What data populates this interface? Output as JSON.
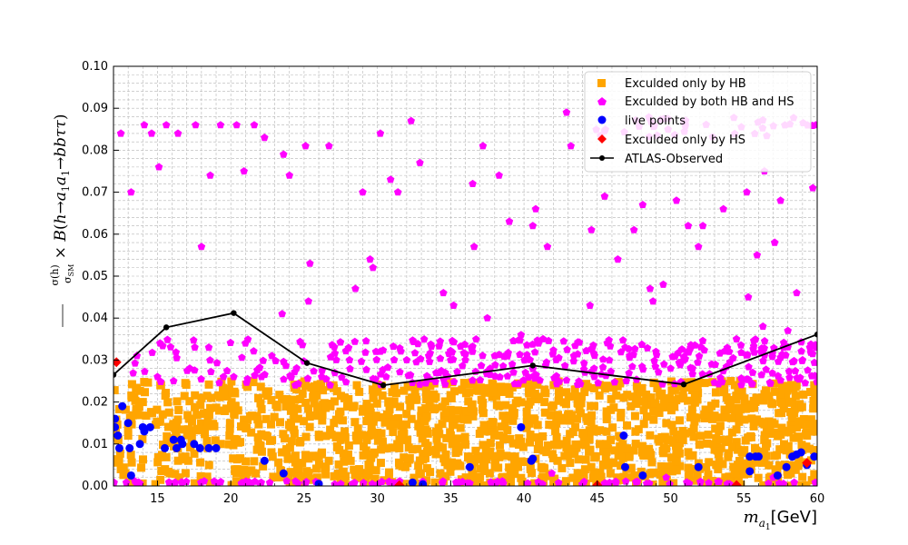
{
  "chart_data": {
    "type": "scatter",
    "xlabel": "m_a1[GeV]",
    "ylabel": "σ(h)/σ_SM × B(h→a1a1→bbττ)",
    "xlim": [
      12,
      60
    ],
    "ylim": [
      0,
      0.1
    ],
    "x_ticks": [
      15,
      20,
      25,
      30,
      35,
      40,
      45,
      50,
      55,
      60
    ],
    "y_ticks": [
      0.0,
      0.01,
      0.02,
      0.03,
      0.04,
      0.05,
      0.06,
      0.07,
      0.08,
      0.09,
      0.1
    ],
    "x_tick_labels": [
      "15",
      "20",
      "25",
      "30",
      "35",
      "40",
      "45",
      "50",
      "55",
      "60"
    ],
    "y_tick_labels": [
      "0.00",
      "0.01",
      "0.02",
      "0.03",
      "0.04",
      "0.05",
      "0.06",
      "0.07",
      "0.08",
      "0.09",
      "0.10"
    ],
    "grid": true,
    "legend_position": "top-right",
    "series": [
      {
        "name": "Exculded only by HB",
        "marker": "square",
        "color": "#FFA500",
        "points": [
          [
            12.5,
            0.004
          ],
          [
            13.0,
            0.012
          ],
          [
            14.0,
            0.02
          ],
          [
            15.2,
            0.024
          ],
          [
            16.3,
            0.015
          ],
          [
            17.1,
            0.006
          ],
          [
            18.0,
            0.021
          ],
          [
            19.3,
            0.01
          ],
          [
            20.5,
            0.018
          ],
          [
            21.7,
            0.003
          ],
          [
            22.4,
            0.022
          ],
          [
            23.8,
            0.008
          ],
          [
            24.6,
            0.016
          ],
          [
            25.9,
            0.002
          ],
          [
            26.8,
            0.019
          ],
          [
            27.5,
            0.011
          ],
          [
            28.6,
            0.024
          ],
          [
            29.4,
            0.005
          ],
          [
            30.7,
            0.017
          ],
          [
            31.5,
            0.009
          ],
          [
            32.6,
            0.021
          ],
          [
            33.4,
            0.013
          ],
          [
            34.3,
            0.003
          ],
          [
            35.5,
            0.018
          ],
          [
            36.2,
            0.007
          ],
          [
            37.4,
            0.023
          ],
          [
            38.3,
            0.012
          ],
          [
            39.1,
            0.001
          ],
          [
            40.2,
            0.016
          ],
          [
            41.4,
            0.02
          ],
          [
            42.3,
            0.006
          ],
          [
            43.5,
            0.014
          ],
          [
            44.2,
            0.024
          ],
          [
            45.6,
            0.01
          ],
          [
            46.4,
            0.002
          ],
          [
            47.3,
            0.019
          ],
          [
            48.5,
            0.008
          ],
          [
            49.4,
            0.022
          ],
          [
            50.2,
            0.013
          ],
          [
            51.5,
            0.004
          ],
          [
            52.3,
            0.017
          ],
          [
            53.4,
            0.011
          ],
          [
            54.6,
            0.023
          ],
          [
            55.4,
            0.006
          ],
          [
            56.3,
            0.015
          ],
          [
            57.5,
            0.02
          ],
          [
            58.2,
            0.003
          ],
          [
            59.3,
            0.012
          ],
          [
            59.8,
            0.024
          ]
        ],
        "region": {
          "x_range": [
            12,
            60
          ],
          "y_range": [
            0,
            0.025
          ]
        }
      },
      {
        "name": "Exculded by both HB and HS",
        "marker": "pentagon",
        "color": "#FF00FF",
        "points": [
          [
            12.5,
            0.084
          ],
          [
            13.2,
            0.07
          ],
          [
            14.1,
            0.086
          ],
          [
            14.6,
            0.084
          ],
          [
            15.1,
            0.076
          ],
          [
            15.6,
            0.086
          ],
          [
            16.4,
            0.084
          ],
          [
            17.6,
            0.086
          ],
          [
            18.0,
            0.057
          ],
          [
            18.6,
            0.074
          ],
          [
            19.3,
            0.086
          ],
          [
            20.4,
            0.086
          ],
          [
            20.9,
            0.075
          ],
          [
            21.6,
            0.086
          ],
          [
            22.3,
            0.083
          ],
          [
            23.6,
            0.079
          ],
          [
            24.0,
            0.074
          ],
          [
            25.1,
            0.081
          ],
          [
            25.4,
            0.053
          ],
          [
            26.7,
            0.081
          ],
          [
            28.5,
            0.047
          ],
          [
            29.0,
            0.07
          ],
          [
            29.5,
            0.054
          ],
          [
            29.7,
            0.052
          ],
          [
            30.2,
            0.084
          ],
          [
            30.9,
            0.073
          ],
          [
            31.4,
            0.07
          ],
          [
            32.3,
            0.087
          ],
          [
            32.9,
            0.077
          ],
          [
            34.5,
            0.046
          ],
          [
            35.2,
            0.043
          ],
          [
            36.5,
            0.072
          ],
          [
            36.6,
            0.057
          ],
          [
            37.2,
            0.081
          ],
          [
            37.5,
            0.04
          ],
          [
            38.3,
            0.074
          ],
          [
            39.0,
            0.063
          ],
          [
            39.8,
            0.036
          ],
          [
            40.6,
            0.062
          ],
          [
            40.8,
            0.066
          ],
          [
            41.6,
            0.057
          ],
          [
            42.9,
            0.089
          ],
          [
            43.2,
            0.081
          ],
          [
            44.5,
            0.043
          ],
          [
            44.6,
            0.061
          ],
          [
            45.5,
            0.069
          ],
          [
            46.4,
            0.054
          ],
          [
            47.5,
            0.061
          ],
          [
            48.1,
            0.067
          ],
          [
            48.6,
            0.047
          ],
          [
            48.8,
            0.044
          ],
          [
            49.5,
            0.048
          ],
          [
            50.4,
            0.068
          ],
          [
            51.2,
            0.062
          ],
          [
            51.9,
            0.057
          ],
          [
            52.2,
            0.062
          ],
          [
            53.6,
            0.066
          ],
          [
            55.2,
            0.07
          ],
          [
            55.3,
            0.045
          ],
          [
            55.9,
            0.055
          ],
          [
            56.4,
            0.075
          ],
          [
            57.1,
            0.058
          ],
          [
            57.5,
            0.068
          ],
          [
            58.6,
            0.046
          ],
          [
            59.7,
            0.071
          ],
          [
            59.9,
            0.086
          ],
          [
            21.0,
            0.034
          ],
          [
            23.5,
            0.041
          ],
          [
            25.3,
            0.044
          ],
          [
            27.2,
            0.03
          ],
          [
            29.9,
            0.032
          ],
          [
            33.5,
            0.031
          ],
          [
            35.0,
            0.03
          ],
          [
            38.0,
            0.031
          ],
          [
            39.2,
            0.029
          ],
          [
            41.3,
            0.035
          ],
          [
            43.4,
            0.031
          ],
          [
            46.9,
            0.033
          ],
          [
            49.0,
            0.032
          ],
          [
            51.5,
            0.028
          ],
          [
            54.0,
            0.032
          ],
          [
            56.3,
            0.038
          ],
          [
            58.0,
            0.037
          ],
          [
            59.5,
            0.033
          ],
          [
            15.0,
            0.026
          ],
          [
            17.2,
            0.028
          ],
          [
            18.5,
            0.033
          ],
          [
            19.5,
            0.026
          ],
          [
            22.1,
            0.026
          ],
          [
            24.4,
            0.024
          ],
          [
            26.2,
            0.026
          ],
          [
            28.1,
            0.03
          ],
          [
            30.6,
            0.026
          ],
          [
            32.0,
            0.03
          ],
          [
            34.2,
            0.027
          ],
          [
            36.0,
            0.03
          ],
          [
            37.7,
            0.028
          ],
          [
            40.1,
            0.027
          ],
          [
            42.2,
            0.03
          ],
          [
            44.8,
            0.026
          ],
          [
            47.2,
            0.031
          ],
          [
            50.0,
            0.028
          ],
          [
            52.8,
            0.029
          ],
          [
            55.6,
            0.027
          ],
          [
            57.7,
            0.033
          ],
          [
            59.0,
            0.03
          ],
          [
            13.6,
            0.031
          ],
          [
            16.1,
            0.025
          ],
          [
            20.2,
            0.026
          ],
          [
            22.8,
            0.031
          ],
          [
            35.8,
            0.001
          ],
          [
            41.9,
            0.003
          ],
          [
            44.1,
            0.001
          ],
          [
            49.7,
            0.002
          ],
          [
            53.3,
            0.001
          ],
          [
            57.0,
            0.002
          ],
          [
            30.3,
            0.001
          ],
          [
            25.8,
            0.001
          ]
        ],
        "band": {
          "x_range": [
            13,
            60
          ],
          "y_range": [
            0.024,
            0.035
          ]
        }
      },
      {
        "name": "live points",
        "marker": "circle",
        "color": "#0000FF",
        "points": [
          [
            12.1,
            0.016
          ],
          [
            12.1,
            0.014
          ],
          [
            12.3,
            0.012
          ],
          [
            12.6,
            0.019
          ],
          [
            12.4,
            0.009
          ],
          [
            13.0,
            0.015
          ],
          [
            13.1,
            0.009
          ],
          [
            13.2,
            0.0025
          ],
          [
            13.8,
            0.01
          ],
          [
            14.0,
            0.014
          ],
          [
            14.1,
            0.013
          ],
          [
            14.5,
            0.014
          ],
          [
            15.5,
            0.009
          ],
          [
            16.1,
            0.011
          ],
          [
            16.3,
            0.009
          ],
          [
            16.6,
            0.011
          ],
          [
            16.7,
            0.01
          ],
          [
            17.5,
            0.01
          ],
          [
            17.9,
            0.009
          ],
          [
            18.5,
            0.009
          ],
          [
            19.0,
            0.009
          ],
          [
            22.3,
            0.006
          ],
          [
            23.6,
            0.003
          ],
          [
            26.0,
            0.0005
          ],
          [
            32.4,
            0.0008
          ],
          [
            33.1,
            0.0004
          ],
          [
            36.3,
            0.0045
          ],
          [
            39.8,
            0.014
          ],
          [
            40.5,
            0.006
          ],
          [
            40.6,
            0.0065
          ],
          [
            46.8,
            0.012
          ],
          [
            46.9,
            0.0045
          ],
          [
            48.1,
            0.0025
          ],
          [
            51.9,
            0.0045
          ],
          [
            55.4,
            0.0035
          ],
          [
            55.4,
            0.007
          ],
          [
            55.8,
            0.007
          ],
          [
            56.0,
            0.007
          ],
          [
            57.3,
            0.0025
          ],
          [
            57.9,
            0.0045
          ],
          [
            58.3,
            0.007
          ],
          [
            58.6,
            0.0075
          ],
          [
            58.9,
            0.008
          ],
          [
            59.3,
            0.005
          ],
          [
            59.8,
            0.007
          ]
        ]
      },
      {
        "name": "Exculded only by HS",
        "marker": "diamond",
        "color": "#FF0000",
        "points": [
          [
            12.2,
            0.0295
          ],
          [
            31.5,
            0.0002
          ],
          [
            45.0,
            0.0002
          ],
          [
            54.5,
            0.0002
          ],
          [
            59.3,
            0.0055
          ]
        ]
      },
      {
        "name": "ATLAS-Observed",
        "marker": "line",
        "color": "#000000",
        "points": [
          [
            12.0,
            0.0265
          ],
          [
            15.6,
            0.0378
          ],
          [
            20.2,
            0.0412
          ],
          [
            25.2,
            0.0293
          ],
          [
            30.4,
            0.024
          ],
          [
            40.6,
            0.0287
          ],
          [
            50.9,
            0.0242
          ],
          [
            60.0,
            0.0361
          ]
        ]
      }
    ]
  }
}
